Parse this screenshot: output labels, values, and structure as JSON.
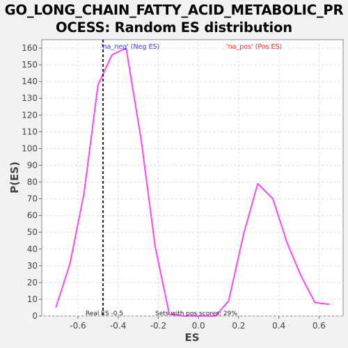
{
  "chart_data": {
    "type": "line",
    "title_line1": "GO_LONG_CHAIN_FATTY_ACID_METABOLIC_PR",
    "title_line2": "OCESS: Random ES distribution",
    "xlabel": "ES",
    "ylabel": "P(ES)",
    "xlim": [
      -0.78,
      0.72
    ],
    "ylim": [
      0,
      165
    ],
    "xticks": [
      -0.6,
      -0.4,
      -0.2,
      0.0,
      0.2,
      0.4,
      0.6
    ],
    "xtick_labels": [
      "-0.6",
      "-0.4",
      "-0.2",
      "0.0",
      "0.2",
      "0.4",
      "0.6"
    ],
    "yticks": [
      0,
      10,
      20,
      30,
      40,
      50,
      60,
      70,
      80,
      90,
      100,
      110,
      120,
      130,
      140,
      150,
      160
    ],
    "grid": true,
    "series": [
      {
        "color": "#ff44ff",
        "x": [
          -0.71,
          -0.64,
          -0.57,
          -0.5,
          -0.43,
          -0.36,
          -0.285,
          -0.215,
          -0.145,
          -0.075,
          0.0,
          0.085,
          0.15,
          0.225,
          0.295,
          0.37,
          0.44,
          0.51,
          0.58,
          0.65
        ],
        "y": [
          5,
          31,
          73,
          138,
          156,
          160,
          105,
          41,
          1,
          0,
          0,
          0,
          9,
          49,
          79,
          70,
          44,
          24,
          8,
          7
        ]
      }
    ],
    "real_es": -0.475,
    "real_es_color": "#222222",
    "legend_neg": "'na_neg' (Neg ES)",
    "legend_pos": "'na_pos' (Pos ES)",
    "legend_neg_color": "#3a3aff",
    "legend_pos_color": "#ff2a2a",
    "annotation_real_es": "Real ES -0.5",
    "annotation_pos_scores": "Sets with pos scores: 29%"
  }
}
